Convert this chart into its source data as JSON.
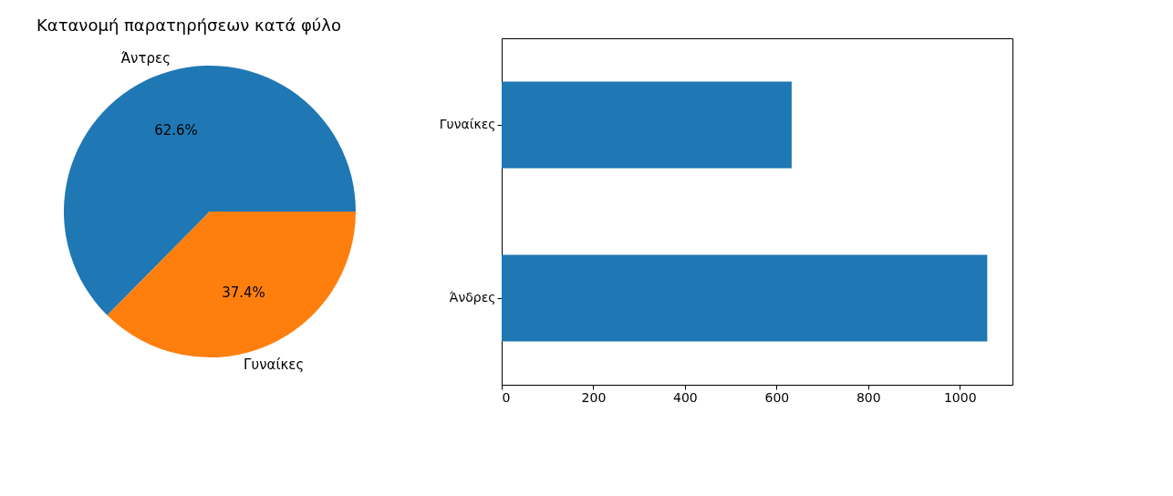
{
  "chart_data": [
    {
      "type": "pie",
      "title": "Κατανομή παρατηρήσεων κατά φύλο",
      "categories": [
        "Άντρες",
        "Γυναίκες"
      ],
      "values": [
        62.6,
        37.4
      ],
      "colors": [
        "#1f77b4",
        "#ff7f0e"
      ],
      "value_labels": [
        "62.6%",
        "37.4%"
      ]
    },
    {
      "type": "bar",
      "orientation": "horizontal",
      "categories": [
        "Γυναίκες",
        "Άνδρες"
      ],
      "values": [
        633,
        1060
      ],
      "color": "#1f77b4",
      "xlim": [
        0,
        1115
      ],
      "xticks": [
        0,
        200,
        400,
        600,
        800,
        1000
      ],
      "grid": false
    }
  ]
}
